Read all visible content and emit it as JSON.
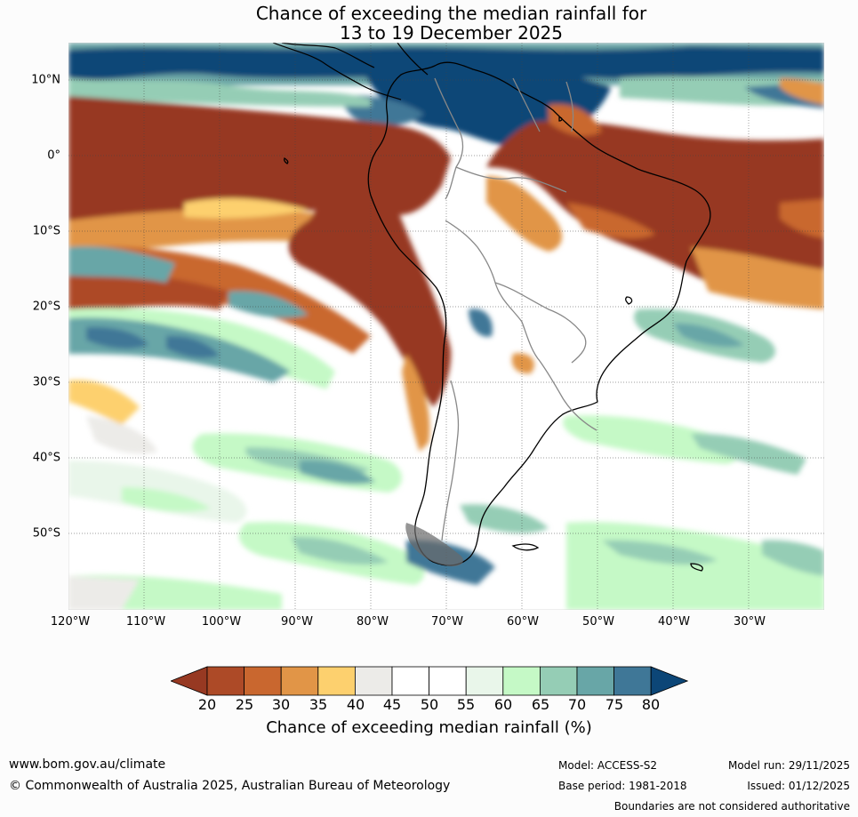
{
  "title": {
    "line1": "Chance of exceeding the median rainfall for",
    "line2": "13 to 19 December 2025"
  },
  "map": {
    "lat_labels": [
      "10°N",
      "0°",
      "10°S",
      "20°S",
      "30°S",
      "40°S",
      "50°S"
    ],
    "lon_labels": [
      "120°W",
      "110°W",
      "100°W",
      "90°W",
      "80°W",
      "70°W",
      "60°W",
      "50°W",
      "40°W",
      "30°W"
    ]
  },
  "colorbar": {
    "ticks": [
      "20",
      "25",
      "30",
      "35",
      "40",
      "45",
      "50",
      "55",
      "60",
      "65",
      "70",
      "75",
      "80"
    ],
    "colors": [
      "#973922",
      "#ad4a27",
      "#c9672f",
      "#e19547",
      "#fdd06e",
      "#ecebe8",
      "#ffffff",
      "#ffffff",
      "#e9f6ea",
      "#c5f9c6",
      "#95cdb5",
      "#68a6a7",
      "#3f7797",
      "#0c4677"
    ],
    "label": "Chance of exceeding median rainfall (%)"
  },
  "footer": {
    "website": "www.bom.gov.au/climate",
    "copyright": "© Commonwealth of Australia 2025, Australian Bureau of Meteorology",
    "model": "Model: ACCESS-S2",
    "base_period": "Base period: 1981-2018",
    "model_run": "Model run: 29/11/2025",
    "issued": "Issued: 01/12/2025",
    "disclaimer": "Boundaries are not considered authoritative"
  }
}
